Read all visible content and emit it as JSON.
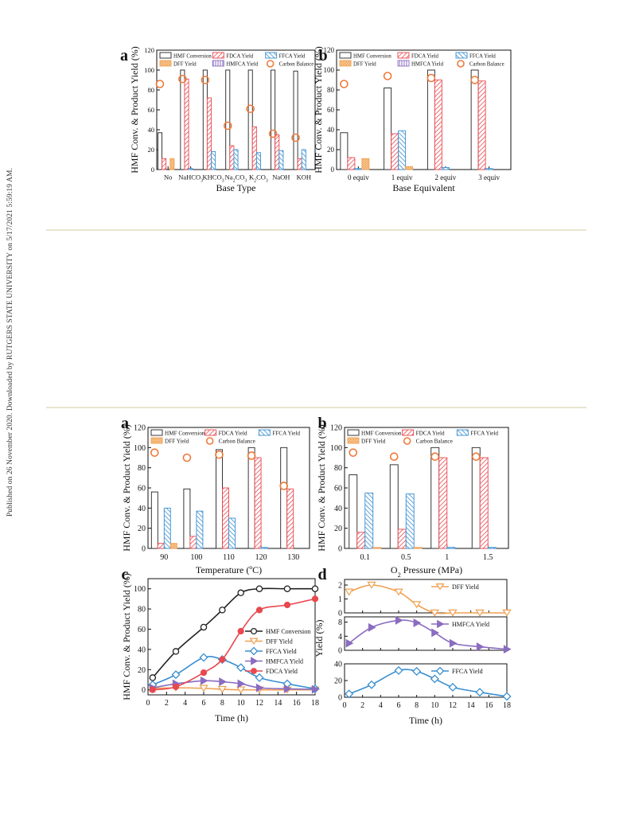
{
  "sidebar": {
    "text": "Published on 26 November 2020. Downloaded by RUTGERS STATE UNIVERSITY on 5/17/2021 5:59:19 AM."
  },
  "colors": {
    "conv": "#222222",
    "fdca": "#e8484f",
    "ffca": "#3a8fd0",
    "dff": "#f0a050",
    "hmfca": "#8a6cc0",
    "carbon": "#ee7a3a"
  },
  "chart_data": [
    {
      "id": "top-a",
      "type": "bar",
      "panel_label": "a",
      "xlabel": "Base Type",
      "ylabel": "HMF Conv. & Product Yield (%)",
      "ylim": [
        0,
        120
      ],
      "yticks": [
        0,
        20,
        40,
        60,
        80,
        100,
        120
      ],
      "categories": [
        "No",
        "NaHCO3",
        "KHCO3",
        "Na2CO3",
        "K2CO3",
        "NaOH",
        "KOH"
      ],
      "category_labels": [
        [
          "No",
          ""
        ],
        [
          "NaHCO",
          "3"
        ],
        [
          "KHCO",
          "3"
        ],
        [
          "Na",
          "2",
          "CO",
          "3"
        ],
        [
          "K",
          "2",
          "CO",
          "3"
        ],
        [
          "NaOH"
        ],
        [
          "KOH"
        ]
      ],
      "legend": [
        "HMF Conversion",
        "FDCA Yield",
        "FFCA Yield",
        "DFF Yield",
        "HMFCA Yield",
        "Carbon Balance"
      ],
      "series": [
        {
          "name": "HMF Conversion",
          "values": [
            37,
            100,
            100,
            100,
            100,
            100,
            99
          ]
        },
        {
          "name": "FDCA Yield",
          "values": [
            11,
            91,
            72,
            24,
            43,
            35,
            11
          ]
        },
        {
          "name": "FFCA Yield",
          "values": [
            0,
            1,
            18,
            20,
            17,
            19,
            20
          ]
        },
        {
          "name": "DFF Yield",
          "values": [
            11,
            0,
            0,
            0,
            0,
            0,
            0
          ]
        },
        {
          "name": "HMFCA Yield",
          "values": [
            0,
            0,
            0,
            0,
            0,
            0,
            0
          ]
        }
      ],
      "carbon_balance": [
        86,
        91,
        90,
        44,
        61,
        36,
        32
      ]
    },
    {
      "id": "top-b",
      "type": "bar",
      "panel_label": "b",
      "xlabel": "Base Equivalent",
      "ylabel": "HMF Conv. & Product Yield (%)",
      "ylim": [
        0,
        120
      ],
      "yticks": [
        0,
        20,
        40,
        60,
        80,
        100,
        120
      ],
      "categories": [
        "0 equiv",
        "1 equiv",
        "2 equiv",
        "3 equiv"
      ],
      "legend": [
        "HMF Conversion",
        "FDCA Yield",
        "FFCA Yield",
        "DFF Yield",
        "HMFCA Yield",
        "Carbon Balance"
      ],
      "series": [
        {
          "name": "HMF Conversion",
          "values": [
            37,
            82,
            100,
            100
          ]
        },
        {
          "name": "FDCA Yield",
          "values": [
            12,
            36,
            90,
            89
          ]
        },
        {
          "name": "FFCA Yield",
          "values": [
            1,
            39,
            2,
            1
          ]
        },
        {
          "name": "DFF Yield",
          "values": [
            11,
            3,
            0,
            0
          ]
        },
        {
          "name": "HMFCA Yield",
          "values": [
            0,
            0,
            0,
            0
          ]
        }
      ],
      "carbon_balance": [
        86,
        94,
        92,
        90
      ]
    },
    {
      "id": "bot-a",
      "type": "bar",
      "panel_label": "a",
      "xlabel": "Temperature (ºC)",
      "ylabel": "HMF Conv. & Product Yield (%)",
      "ylim": [
        0,
        120
      ],
      "yticks": [
        0,
        20,
        40,
        60,
        80,
        100,
        120
      ],
      "categories": [
        "90",
        "100",
        "110",
        "120",
        "130"
      ],
      "legend": [
        "HMF Conversion",
        "FDCA Yield",
        "FFCA Yield",
        "DFF Yield",
        "Carbon Balance"
      ],
      "series": [
        {
          "name": "HMF Conversion",
          "values": [
            56,
            59,
            98,
            100,
            100
          ]
        },
        {
          "name": "FDCA Yield",
          "values": [
            5,
            12,
            60,
            90,
            59
          ]
        },
        {
          "name": "FFCA Yield",
          "values": [
            40,
            37,
            30,
            1,
            0
          ]
        },
        {
          "name": "DFF Yield",
          "values": [
            5,
            0,
            0,
            0,
            0
          ]
        }
      ],
      "carbon_balance": [
        95,
        90,
        93,
        92,
        62
      ]
    },
    {
      "id": "bot-b",
      "type": "bar",
      "panel_label": "b",
      "xlabel": "O2 Pressure (MPa)",
      "ylabel": "HMF Conv. & Product Yield (%)",
      "ylim": [
        0,
        120
      ],
      "yticks": [
        0,
        20,
        40,
        60,
        80,
        100,
        120
      ],
      "categories": [
        "0.1",
        "0.5",
        "1",
        "1.5"
      ],
      "legend": [
        "HMF Conversion",
        "FDCA Yield",
        "FFCA Yield",
        "DFF Yield",
        "Carbon Balance"
      ],
      "series": [
        {
          "name": "HMF Conversion",
          "values": [
            73,
            83,
            100,
            100
          ]
        },
        {
          "name": "FDCA Yield",
          "values": [
            16,
            19,
            90,
            90
          ]
        },
        {
          "name": "FFCA Yield",
          "values": [
            55,
            54,
            1,
            1
          ]
        },
        {
          "name": "DFF Yield",
          "values": [
            1,
            1,
            0,
            0
          ]
        }
      ],
      "carbon_balance": [
        95,
        91,
        91,
        91
      ]
    },
    {
      "id": "bot-c",
      "type": "line",
      "panel_label": "c",
      "xlabel": "Time (h)",
      "ylabel": "HMF Conv. & Product Yield (%)",
      "xlim": [
        0,
        18
      ],
      "ylim": [
        -5,
        110
      ],
      "xticks": [
        0,
        2,
        4,
        6,
        8,
        10,
        12,
        14,
        16,
        18
      ],
      "yticks": [
        0,
        20,
        40,
        60,
        80,
        100
      ],
      "x": [
        0.5,
        3,
        6,
        8,
        10,
        12,
        15,
        18
      ],
      "series": [
        {
          "name": "HMF Conversion",
          "values": [
            12,
            38,
            62,
            79,
            96,
            100,
            100,
            100
          ]
        },
        {
          "name": "DFF Yield",
          "values": [
            1.5,
            2,
            1.5,
            0.5,
            0,
            0,
            0,
            0
          ]
        },
        {
          "name": "FFCA Yield",
          "values": [
            5,
            15,
            32,
            30,
            22,
            12,
            6,
            1
          ]
        },
        {
          "name": "HMFCA Yield",
          "values": [
            2,
            6,
            9,
            8,
            6,
            2,
            1,
            0.5
          ]
        },
        {
          "name": "FDCA Yield",
          "values": [
            0,
            3,
            17,
            30,
            58,
            79,
            84,
            90
          ]
        }
      ]
    },
    {
      "id": "bot-d",
      "type": "line",
      "panel_label": "d",
      "xlabel": "Time (h)",
      "ylabel": "Yield (%)",
      "xlim": [
        0,
        18
      ],
      "xticks": [
        0,
        2,
        4,
        6,
        8,
        10,
        12,
        14,
        16,
        18
      ],
      "x": [
        0.5,
        3,
        6,
        8,
        10,
        12,
        15,
        18
      ],
      "subplots": [
        {
          "name": "DFF Yield",
          "ylim": [
            0,
            2.4
          ],
          "yticks": [
            0,
            1,
            2
          ],
          "values": [
            1.5,
            2,
            1.5,
            0.6,
            0,
            0,
            0,
            0
          ]
        },
        {
          "name": "HMFCA Yield",
          "ylim": [
            0,
            9.5
          ],
          "yticks": [
            0,
            4,
            8
          ],
          "values": [
            2,
            6.5,
            8.5,
            7.8,
            5,
            2,
            1,
            0.3
          ]
        },
        {
          "name": "FFCA Yield",
          "ylim": [
            0,
            40
          ],
          "yticks": [
            0,
            20,
            40
          ],
          "values": [
            4,
            15,
            32,
            31,
            22,
            12,
            6,
            1
          ]
        }
      ]
    }
  ]
}
